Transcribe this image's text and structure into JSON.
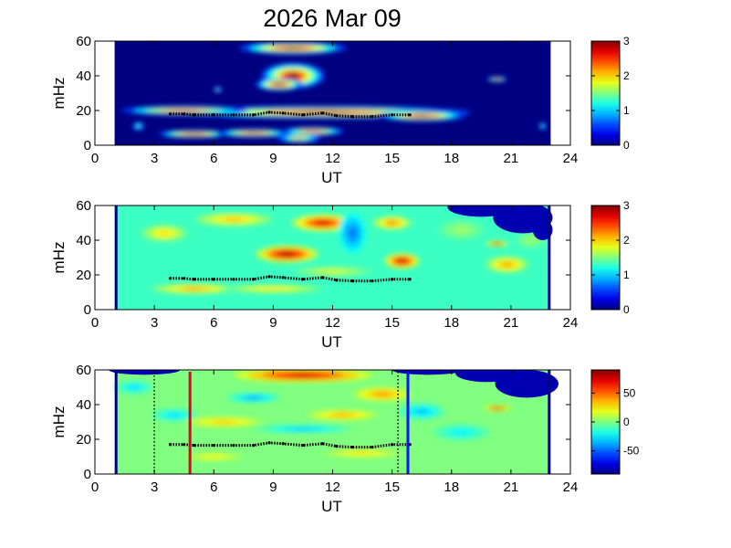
{
  "figure": {
    "title": "2026 Mar 09"
  },
  "chart_data": [
    {
      "type": "heatmap",
      "xlabel": "UT",
      "ylabel": "mHz",
      "xlim": [
        0,
        24
      ],
      "ylim": [
        0,
        60
      ],
      "xticks": [
        "0",
        "3",
        "6",
        "9",
        "12",
        "15",
        "18",
        "21",
        "24"
      ],
      "yticks": [
        "0",
        "20",
        "40",
        "60"
      ],
      "colorbar": {
        "range": [
          0,
          3
        ],
        "ticks": [
          "0",
          "1",
          "2",
          "3"
        ]
      },
      "data_extent_ut": [
        1,
        23
      ],
      "background": 0,
      "blobs": [
        {
          "t": 11.5,
          "f": 19,
          "rt": 7.5,
          "rf": 3.5,
          "v": 2.9
        },
        {
          "t": 4.5,
          "f": 20,
          "rt": 3.2,
          "rf": 2.6,
          "v": 2.7
        },
        {
          "t": 16.5,
          "f": 17,
          "rt": 2.2,
          "rf": 3,
          "v": 2.9
        },
        {
          "t": 10,
          "f": 40,
          "rt": 1.6,
          "rf": 7.5,
          "v": 3
        },
        {
          "t": 9.3,
          "f": 35,
          "rt": 1.2,
          "rf": 3.5,
          "v": 3
        },
        {
          "t": 10,
          "f": 56,
          "rt": 2.7,
          "rf": 3.5,
          "v": 3
        },
        {
          "t": 5,
          "f": 6.5,
          "rt": 1.8,
          "rf": 2.2,
          "v": 2.9
        },
        {
          "t": 8,
          "f": 7,
          "rt": 1.8,
          "rf": 2.3,
          "v": 2.8
        },
        {
          "t": 11,
          "f": 8,
          "rt": 1.6,
          "rf": 2.3,
          "v": 2.7
        },
        {
          "t": 10.3,
          "f": 4,
          "rt": 1.1,
          "rf": 2.5,
          "v": 2.2
        },
        {
          "t": 20.3,
          "f": 38,
          "rt": 0.5,
          "rf": 1.3,
          "v": 2.7
        },
        {
          "t": 6.2,
          "f": 32,
          "rt": 0.2,
          "rf": 1.5,
          "v": 1.8
        },
        {
          "t": 2.2,
          "f": 11,
          "rt": 0.3,
          "rf": 2.5,
          "v": 1.5
        },
        {
          "t": 22.6,
          "f": 11,
          "rt": 0.2,
          "rf": 2,
          "v": 1.5
        }
      ],
      "ridge": {
        "ut": [
          3.8,
          4.5,
          5,
          6,
          7,
          8,
          8.8,
          9.5,
          10.5,
          11.5,
          12.2,
          13,
          14,
          15,
          15.9
        ],
        "mhz": [
          18,
          18,
          17.5,
          17.5,
          17.5,
          17.5,
          19,
          18.5,
          17.5,
          18.5,
          17,
          16.5,
          16.5,
          17.5,
          17.5
        ]
      },
      "vertical_lines": []
    },
    {
      "type": "heatmap",
      "xlabel": "UT",
      "ylabel": "mHz",
      "xlim": [
        0,
        24
      ],
      "ylim": [
        0,
        60
      ],
      "xticks": [
        "0",
        "3",
        "6",
        "9",
        "12",
        "15",
        "18",
        "21",
        "24"
      ],
      "yticks": [
        "0",
        "20",
        "40",
        "60"
      ],
      "colorbar": {
        "range": [
          0,
          3
        ],
        "ticks": [
          "0",
          "1",
          "2",
          "3"
        ]
      },
      "data_extent_ut": [
        1,
        23
      ],
      "background": 1.3,
      "blobs": [
        {
          "t": 9.7,
          "f": 32,
          "rt": 1.6,
          "rf": 5,
          "v": 3
        },
        {
          "t": 11.5,
          "f": 50,
          "rt": 1.6,
          "rf": 5,
          "v": 2.8
        },
        {
          "t": 15.5,
          "f": 28,
          "rt": 0.9,
          "rf": 4.5,
          "v": 2.9
        },
        {
          "t": 15,
          "f": 50,
          "rt": 1,
          "rf": 4,
          "v": 2.3
        },
        {
          "t": 7,
          "f": 52,
          "rt": 2,
          "rf": 4,
          "v": 2.1
        },
        {
          "t": 5,
          "f": 12,
          "rt": 2.2,
          "rf": 3,
          "v": 2.2
        },
        {
          "t": 9,
          "f": 12,
          "rt": 2.5,
          "rf": 2.5,
          "v": 2
        },
        {
          "t": 3.5,
          "f": 44,
          "rt": 1.2,
          "rf": 5,
          "v": 2
        },
        {
          "t": 20.3,
          "f": 38,
          "rt": 0.6,
          "rf": 1.5,
          "v": 2.7
        },
        {
          "t": 20.8,
          "f": 26,
          "rt": 1.1,
          "rf": 5,
          "v": 2.2
        },
        {
          "t": 13,
          "f": 44,
          "rt": 0.7,
          "rf": 12,
          "v": 0.7
        },
        {
          "t": 12,
          "f": 22,
          "rt": 2,
          "rf": 3,
          "v": 1.8
        },
        {
          "t": 18.5,
          "f": 46,
          "rt": 1.2,
          "rf": 6,
          "v": 1.6
        },
        {
          "t": 22,
          "f": 40,
          "rt": 0.8,
          "rf": 5,
          "v": 1.6
        }
      ],
      "mask": [
        {
          "t": 19.5,
          "f": 59,
          "rt": 1.7,
          "rf": 5.5
        },
        {
          "t": 21.6,
          "f": 53,
          "rt": 1.5,
          "rf": 9
        },
        {
          "t": 22.6,
          "f": 46,
          "rt": 0.5,
          "rf": 6
        }
      ],
      "ridge": {
        "ut": [
          3.8,
          4.5,
          5,
          6,
          7,
          8,
          8.8,
          9.5,
          10.5,
          11.5,
          12.2,
          13,
          14,
          15,
          15.9
        ],
        "mhz": [
          18,
          18,
          17.5,
          17.5,
          17.5,
          17.5,
          19,
          18.5,
          17.5,
          18.5,
          17,
          16.5,
          16.5,
          17.5,
          17.5
        ]
      },
      "vertical_lines": []
    },
    {
      "type": "heatmap",
      "xlabel": "UT",
      "ylabel": "mHz",
      "xlim": [
        0,
        24
      ],
      "ylim": [
        0,
        60
      ],
      "xticks": [
        "0",
        "3",
        "6",
        "9",
        "12",
        "15",
        "18",
        "21",
        "24"
      ],
      "yticks": [
        "0",
        "20",
        "40",
        "60"
      ],
      "colorbar": {
        "range": [
          -90,
          90
        ],
        "ticks": [
          "-50",
          "0",
          "50"
        ],
        "tick_values": [
          -50,
          0,
          50
        ]
      },
      "data_extent_ut": [
        1,
        23
      ],
      "background": 0,
      "blobs": [
        {
          "t": 10.5,
          "f": 57,
          "rt": 3.5,
          "rf": 4,
          "v": 80
        },
        {
          "t": 6.5,
          "f": 30,
          "rt": 2,
          "rf": 3,
          "v": 35
        },
        {
          "t": 12.5,
          "f": 34,
          "rt": 1.8,
          "rf": 3,
          "v": 40
        },
        {
          "t": 14.5,
          "f": 46,
          "rt": 1.5,
          "rf": 4,
          "v": 45
        },
        {
          "t": 8,
          "f": 44,
          "rt": 1.4,
          "rf": 3,
          "v": -40
        },
        {
          "t": 10.5,
          "f": 26,
          "rt": 2.5,
          "rf": 2.5,
          "v": -35
        },
        {
          "t": 4,
          "f": 34,
          "rt": 1.2,
          "rf": 4,
          "v": -30
        },
        {
          "t": 13.5,
          "f": 12,
          "rt": 2,
          "rf": 2.5,
          "v": 30
        },
        {
          "t": 16.5,
          "f": 36,
          "rt": 1.2,
          "rf": 5,
          "v": -35
        },
        {
          "t": 20.3,
          "f": 38,
          "rt": 0.7,
          "rf": 1.5,
          "v": 70
        },
        {
          "t": 6,
          "f": 10,
          "rt": 1.5,
          "rf": 2.5,
          "v": 25
        },
        {
          "t": 18.5,
          "f": 24,
          "rt": 1.5,
          "rf": 5,
          "v": -25
        },
        {
          "t": 2,
          "f": 50,
          "rt": 1,
          "rf": 4,
          "v": -30
        }
      ],
      "mask": [
        {
          "t": 2.5,
          "f": 60,
          "rt": 1.8,
          "rf": 2.8
        },
        {
          "t": 16.8,
          "f": 60,
          "rt": 1.8,
          "rf": 2.8
        },
        {
          "t": 19.8,
          "f": 58,
          "rt": 1.6,
          "rf": 5
        },
        {
          "t": 21.8,
          "f": 52,
          "rt": 1.6,
          "rf": 8
        }
      ],
      "ridge": {
        "ut": [
          3.8,
          4.5,
          5,
          6,
          7,
          8,
          8.8,
          9.5,
          10.5,
          11.5,
          12.2,
          13,
          14,
          15,
          15.9
        ],
        "mhz": [
          17,
          17,
          16.5,
          16.5,
          16.5,
          16.5,
          18,
          17.5,
          16.5,
          17.5,
          16,
          15.5,
          15.5,
          17,
          17
        ]
      },
      "vertical_lines": [
        {
          "ut": 3,
          "color": "#000000",
          "style": "dotted"
        },
        {
          "ut": 4.8,
          "color": "#e0002a",
          "style": "solid"
        },
        {
          "ut": 15.3,
          "color": "#000000",
          "style": "dotted"
        },
        {
          "ut": 15.8,
          "color": "#1010ff",
          "style": "solid"
        }
      ]
    }
  ]
}
